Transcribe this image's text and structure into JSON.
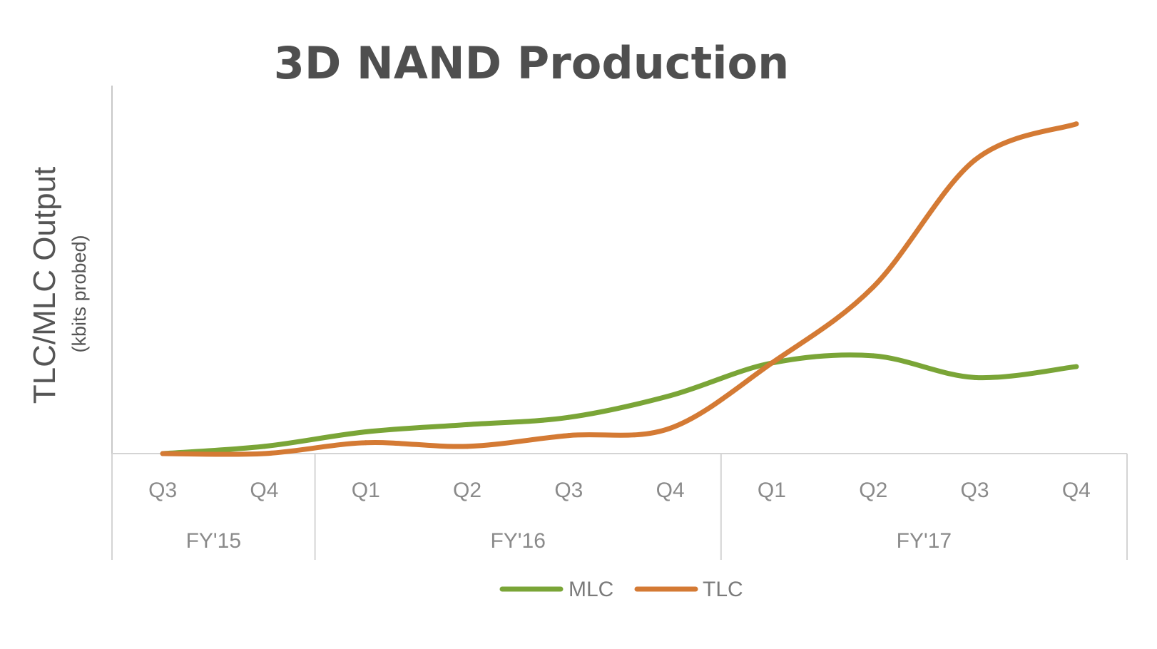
{
  "chart_data": {
    "type": "line",
    "title": "3D NAND Production",
    "ylabel": "TLC/MLC Output",
    "ylabel_sub": "(kbits probed)",
    "xlabel": "",
    "categories": [
      "Q3",
      "Q4",
      "Q1",
      "Q2",
      "Q3",
      "Q4",
      "Q1",
      "Q2",
      "Q3",
      "Q4"
    ],
    "groups": [
      {
        "label": "FY'15",
        "quarters": [
          "Q3",
          "Q4"
        ]
      },
      {
        "label": "FY'16",
        "quarters": [
          "Q1",
          "Q2",
          "Q3",
          "Q4"
        ]
      },
      {
        "label": "FY'17",
        "quarters": [
          "Q1",
          "Q2",
          "Q3",
          "Q4"
        ]
      }
    ],
    "series": [
      {
        "name": "MLC",
        "color": "#7aa537",
        "values": [
          0,
          2,
          6,
          8,
          10,
          16,
          25,
          27,
          21,
          24
        ]
      },
      {
        "name": "TLC",
        "color": "#d47a34",
        "values": [
          0,
          0,
          3,
          2,
          5,
          7,
          25,
          46,
          81,
          91
        ]
      }
    ],
    "ylim": [
      0,
      100
    ],
    "grid": false,
    "y_tick_labels_shown": false,
    "legend": "bottom-center"
  }
}
